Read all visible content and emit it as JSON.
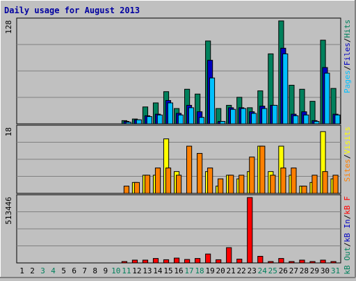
{
  "title": "Daily usage for August 2013",
  "colors": {
    "background": "#C0C0C0",
    "panel": "#C0C0C0",
    "title": "#0000A0",
    "hits": "#00805C",
    "files": "#0000C0",
    "pages": "#00C0FF",
    "visits": "#FFFF00",
    "sites": "#FF8000",
    "kb_out": "#00805C",
    "kb_in": "#0000C0",
    "kb_f": "#FF0000",
    "weekday": "#000000",
    "weekend": "#00805C",
    "separator": "#000000"
  },
  "chart_data": [
    {
      "type": "bar",
      "title": "Daily usage for August 2013",
      "categories": [
        "1",
        "2",
        "3",
        "4",
        "5",
        "6",
        "7",
        "8",
        "9",
        "10",
        "11",
        "12",
        "13",
        "14",
        "15",
        "16",
        "17",
        "18",
        "19",
        "20",
        "21",
        "22",
        "23",
        "24",
        "25",
        "26",
        "27",
        "28",
        "29",
        "30",
        "31"
      ],
      "weekend_days": [
        "3",
        "4",
        "10",
        "11",
        "17",
        "18",
        "24",
        "25",
        "31"
      ],
      "scale_max_label": "128",
      "ylim": [
        0,
        128
      ],
      "grid": true,
      "legend": [
        {
          "label": "Hits",
          "color": "#00805C"
        },
        {
          "label": "Files",
          "color": "#0000C0"
        },
        {
          "label": "Pages",
          "color": "#00C0FF"
        }
      ],
      "series": [
        {
          "name": "Hits",
          "values": [
            0,
            0,
            0,
            0,
            0,
            0,
            0,
            0,
            0,
            0,
            4,
            6,
            21,
            26,
            40,
            19,
            43,
            37,
            103,
            19,
            23,
            33,
            20,
            41,
            87,
            128,
            48,
            43,
            28,
            104,
            44
          ]
        },
        {
          "name": "Files",
          "values": [
            0,
            0,
            0,
            0,
            0,
            0,
            0,
            0,
            0,
            0,
            3,
            5,
            10,
            12,
            29,
            13,
            23,
            15,
            79,
            3,
            20,
            20,
            15,
            22,
            23,
            94,
            12,
            15,
            4,
            70,
            12
          ]
        },
        {
          "name": "Pages",
          "values": [
            0,
            0,
            0,
            0,
            0,
            0,
            0,
            0,
            0,
            0,
            2,
            5,
            9,
            11,
            26,
            11,
            20,
            8,
            57,
            3,
            18,
            19,
            13,
            19,
            23,
            87,
            10,
            11,
            3,
            63,
            11
          ]
        }
      ]
    },
    {
      "type": "bar",
      "scale_max_label": "18",
      "ylim": [
        0,
        18
      ],
      "grid": true,
      "legend": [
        {
          "label": "Visits",
          "color": "#FFFF00"
        },
        {
          "label": "Sites",
          "color": "#FF8000"
        }
      ],
      "series": [
        {
          "name": "Visits",
          "values": [
            0,
            0,
            0,
            0,
            0,
            0,
            0,
            0,
            0,
            0,
            0,
            3,
            5,
            5,
            15,
            6,
            0,
            0,
            6,
            2,
            5,
            4,
            6,
            13,
            6,
            13,
            5,
            2,
            3,
            17,
            4
          ]
        },
        {
          "name": "Sites",
          "values": [
            0,
            0,
            0,
            0,
            0,
            0,
            0,
            0,
            0,
            0,
            2,
            3,
            5,
            7,
            7,
            5,
            13,
            11,
            7,
            4,
            5,
            5,
            10,
            13,
            5,
            7,
            7,
            2,
            5,
            6,
            5
          ]
        }
      ]
    },
    {
      "type": "bar",
      "scale_max_label": "513446",
      "ylim": [
        0,
        513446
      ],
      "grid": true,
      "legend": [
        {
          "label": "kB F",
          "color": "#FF0000"
        },
        {
          "label": "kB In",
          "color": "#0000C0"
        },
        {
          "label": "kB Out",
          "color": "#00805C"
        }
      ],
      "series": [
        {
          "name": "kB F",
          "values": [
            0,
            0,
            0,
            0,
            0,
            0,
            0,
            0,
            0,
            0,
            8000,
            22000,
            22000,
            35000,
            25000,
            38000,
            27000,
            35000,
            70000,
            25000,
            120000,
            30000,
            513446,
            52000,
            11000,
            35000,
            11000,
            22000,
            11000,
            22000,
            11000
          ]
        },
        {
          "name": "kB In",
          "values": [
            0,
            0,
            0,
            0,
            0,
            0,
            0,
            0,
            0,
            0,
            0,
            0,
            0,
            0,
            0,
            0,
            0,
            0,
            0,
            0,
            0,
            0,
            0,
            0,
            0,
            0,
            0,
            0,
            0,
            0,
            0
          ]
        },
        {
          "name": "kB Out",
          "values": [
            0,
            0,
            0,
            0,
            0,
            0,
            0,
            0,
            0,
            0,
            0,
            0,
            0,
            0,
            0,
            0,
            0,
            0,
            0,
            0,
            0,
            0,
            0,
            0,
            0,
            0,
            0,
            0,
            0,
            0,
            0
          ]
        }
      ]
    }
  ]
}
